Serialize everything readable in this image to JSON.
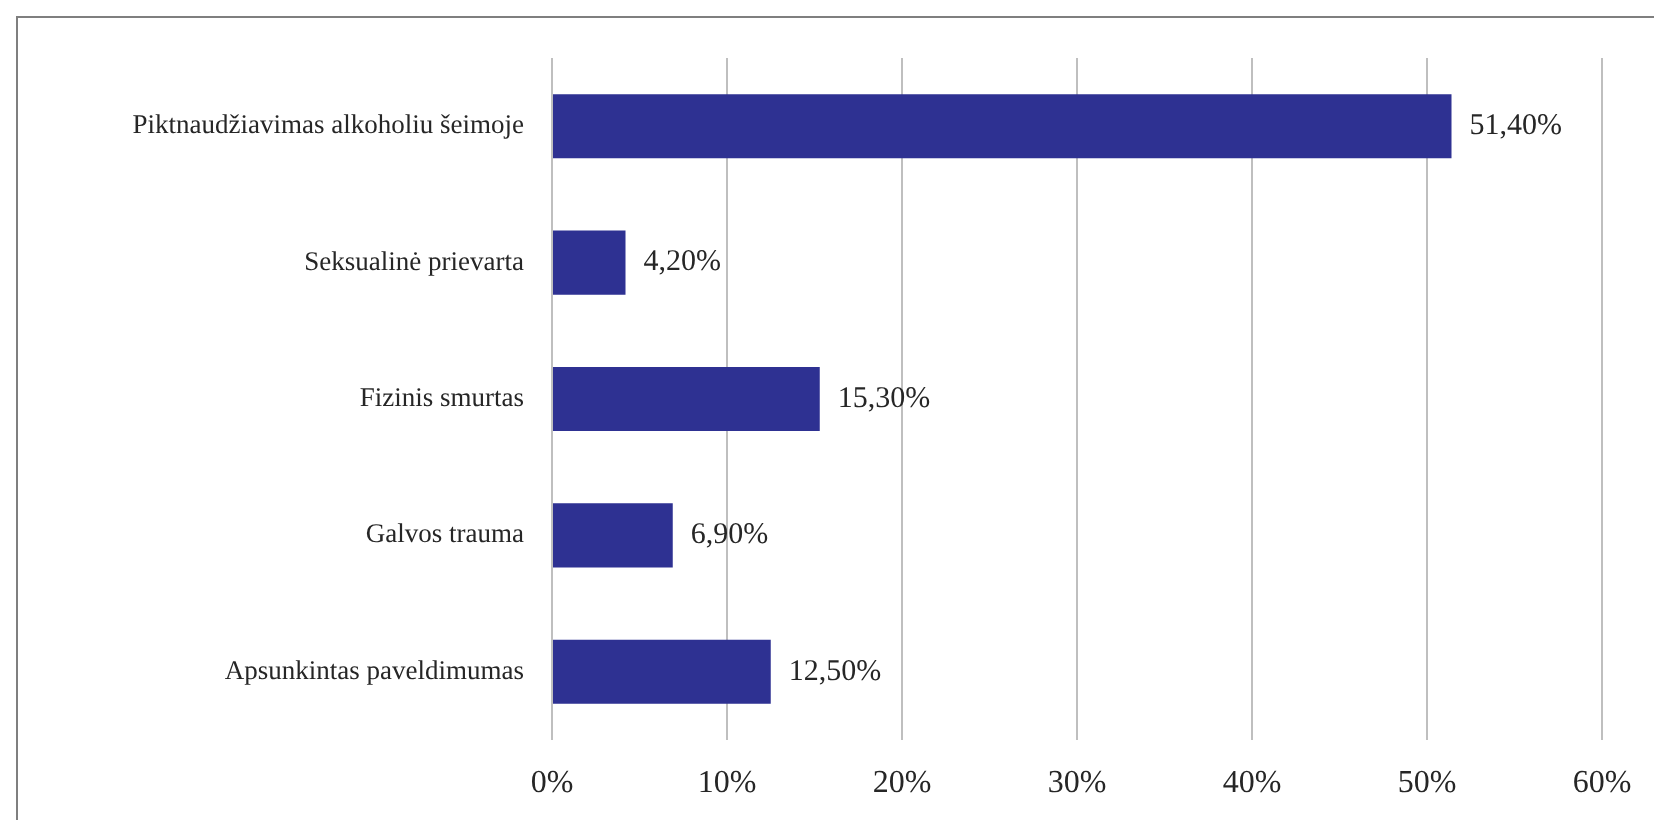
{
  "chart_data": {
    "type": "bar",
    "orientation": "horizontal",
    "categories": [
      "Piktnaudžiavimas alkoholiu šeimoje",
      "Seksualinė prievarta",
      "Fizinis smurtas",
      "Galvos trauma",
      "Apsunkintas paveldimumas"
    ],
    "values": [
      51.4,
      4.2,
      15.3,
      6.9,
      12.5
    ],
    "value_labels": [
      "51,40%",
      "4,20%",
      "15,30%",
      "6,90%",
      "12,50%"
    ],
    "color": "#2e3192",
    "xlim": [
      0,
      60
    ],
    "xticks": [
      {
        "value": 0,
        "label": "0%"
      },
      {
        "value": 10,
        "label": "10%"
      },
      {
        "value": 20,
        "label": "20%"
      },
      {
        "value": 30,
        "label": "30%"
      },
      {
        "value": 40,
        "label": "40%"
      },
      {
        "value": 50,
        "label": "50%"
      },
      {
        "value": 60,
        "label": "60%"
      }
    ],
    "grid": "x"
  }
}
